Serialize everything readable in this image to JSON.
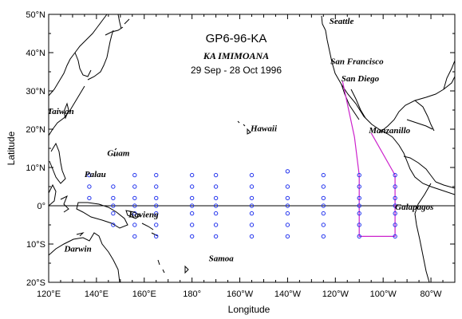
{
  "title": {
    "cruise": "GP6-96-KA",
    "vessel": "KA IMIMOANA",
    "dates": "29 Sep - 28 Oct 1996"
  },
  "axes": {
    "xlabel": "Longitude",
    "ylabel": "Latitude",
    "xlim": [
      120,
      290
    ],
    "ylim": [
      -20,
      50
    ],
    "xticks": [
      {
        "lon": 120,
        "label": "120°E"
      },
      {
        "lon": 140,
        "label": "140°E"
      },
      {
        "lon": 160,
        "label": "160°E"
      },
      {
        "lon": 180,
        "label": "180°"
      },
      {
        "lon": 200,
        "label": "160°W"
      },
      {
        "lon": 220,
        "label": "140°W"
      },
      {
        "lon": 240,
        "label": "120°W"
      },
      {
        "lon": 260,
        "label": "100°W"
      },
      {
        "lon": 280,
        "label": "80°W"
      }
    ],
    "yticks": [
      {
        "lat": 50,
        "label": "50°N"
      },
      {
        "lat": 40,
        "label": "40°N"
      },
      {
        "lat": 30,
        "label": "30°N"
      },
      {
        "lat": 20,
        "label": "20°N"
      },
      {
        "lat": 10,
        "label": "10°N"
      },
      {
        "lat": 0,
        "label": "0°"
      },
      {
        "lat": -10,
        "label": "10°S"
      },
      {
        "lat": -20,
        "label": "20°S"
      }
    ]
  },
  "places": [
    {
      "name": "Seattle",
      "lon": 237.5,
      "lat": 47.5
    },
    {
      "name": "San Francisco",
      "lon": 238,
      "lat": 37
    },
    {
      "name": "San Diego",
      "lon": 242.5,
      "lat": 32.5
    },
    {
      "name": "Manzanillo",
      "lon": 254,
      "lat": 19
    },
    {
      "name": "Hawaii",
      "lon": 204.5,
      "lat": 19.5
    },
    {
      "name": "Taiwan",
      "lon": 119.5,
      "lat": 24
    },
    {
      "name": "Guam",
      "lon": 144.5,
      "lat": 13
    },
    {
      "name": "Palau",
      "lon": 135,
      "lat": 7.5
    },
    {
      "name": "Kavieng",
      "lon": 153.5,
      "lat": -3
    },
    {
      "name": "Darwin",
      "lon": 126.5,
      "lat": -12
    },
    {
      "name": "Samoa",
      "lon": 187,
      "lat": -14.5
    },
    {
      "name": "Galapagos",
      "lon": 265,
      "lat": -1
    }
  ],
  "colors": {
    "mooring": "#2233ee",
    "track": "#cc22cc",
    "land": "#000000"
  },
  "moorings": [
    {
      "lon": 137,
      "lats": [
        8,
        5,
        2
      ]
    },
    {
      "lon": 147,
      "lats": [
        5,
        2,
        0,
        -2,
        -5
      ]
    },
    {
      "lon": 156,
      "lats": [
        8,
        5,
        2,
        0,
        -2,
        -5,
        -8
      ]
    },
    {
      "lon": 165,
      "lats": [
        8,
        5,
        2,
        0,
        -2,
        -5,
        -8
      ]
    },
    {
      "lon": 180,
      "lats": [
        8,
        5,
        2,
        0,
        -2,
        -5,
        -8
      ]
    },
    {
      "lon": 190,
      "lats": [
        8,
        5,
        2,
        0,
        -2,
        -5,
        -8
      ]
    },
    {
      "lon": 205,
      "lats": [
        8,
        5,
        2,
        0,
        -2,
        -5,
        -8
      ]
    },
    {
      "lon": 220,
      "lats": [
        9,
        5,
        2,
        0,
        -2,
        -5,
        -8
      ]
    },
    {
      "lon": 235,
      "lats": [
        8,
        5,
        2,
        0,
        -2,
        -5,
        -8
      ]
    },
    {
      "lon": 250,
      "lats": [
        8,
        5,
        2,
        0,
        -2,
        -5,
        -8
      ]
    },
    {
      "lon": 265,
      "lats": [
        8,
        5,
        2,
        0,
        -2,
        -5,
        -8
      ]
    }
  ],
  "cruise_track": [
    [
      243,
      32.5
    ],
    [
      248,
      18
    ],
    [
      250,
      8
    ],
    [
      250,
      -8
    ],
    [
      265,
      -8
    ],
    [
      265,
      8
    ],
    [
      255,
      19
    ]
  ]
}
